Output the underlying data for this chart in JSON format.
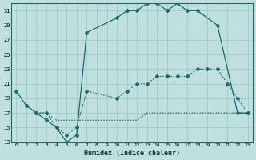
{
  "xlabel": "Humidex (Indice chaleur)",
  "bg_color": "#c0e0e0",
  "grid_color": "#9ac8c8",
  "line_color": "#1a6b6b",
  "xlim": [
    -0.5,
    23.5
  ],
  "ylim": [
    13,
    32
  ],
  "yticks": [
    13,
    15,
    17,
    19,
    21,
    23,
    25,
    27,
    29,
    31
  ],
  "xticks": [
    0,
    1,
    2,
    3,
    4,
    5,
    6,
    7,
    8,
    9,
    10,
    11,
    12,
    13,
    14,
    15,
    16,
    17,
    18,
    19,
    20,
    21,
    22,
    23
  ],
  "curve1_x": [
    0,
    1,
    2,
    3,
    4,
    5,
    6,
    7,
    10,
    11,
    12,
    13,
    14,
    15,
    16,
    17,
    18,
    20,
    22,
    23
  ],
  "curve1_y": [
    20,
    18,
    17,
    16,
    15,
    13,
    14,
    28,
    30,
    31,
    31,
    32,
    32,
    31,
    32,
    31,
    31,
    29,
    17,
    17
  ],
  "curve2_x": [
    1,
    2,
    3,
    4,
    5,
    6,
    7,
    10,
    11,
    12,
    13,
    14,
    15,
    16,
    17,
    18,
    19,
    20,
    21,
    22,
    23
  ],
  "curve2_y": [
    18,
    17,
    17,
    15,
    14,
    15,
    20,
    19,
    20,
    21,
    21,
    22,
    22,
    22,
    22,
    23,
    23,
    23,
    21,
    19,
    17
  ],
  "curve3_x": [
    2,
    3,
    4,
    5,
    6,
    7,
    8,
    9,
    10,
    11,
    12,
    13,
    14,
    15,
    16,
    17,
    18,
    19,
    20,
    21,
    22,
    23
  ],
  "curve3_y": [
    17,
    17,
    16,
    16,
    16,
    16,
    16,
    16,
    16,
    16,
    16,
    17,
    17,
    17,
    17,
    17,
    17,
    17,
    17,
    17,
    17,
    17
  ]
}
